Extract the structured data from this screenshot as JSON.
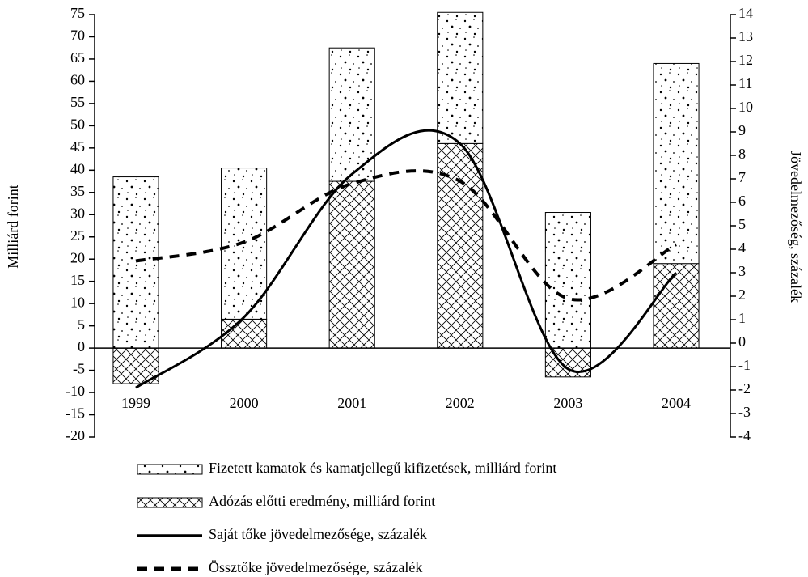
{
  "chart_data": {
    "type": "bar-line",
    "categories": [
      "1999",
      "2000",
      "2001",
      "2002",
      "2003",
      "2004"
    ],
    "ylabel": "Milliárd forint",
    "y2label": "Jövedelmezőség, százalék",
    "ylim": [
      -20,
      75
    ],
    "yticks": [
      -20,
      -15,
      -10,
      -5,
      0,
      5,
      10,
      15,
      20,
      25,
      30,
      35,
      40,
      45,
      50,
      55,
      60,
      65,
      70,
      75
    ],
    "y2lim": [
      -4,
      14
    ],
    "y2ticks": [
      -4,
      -3,
      -2,
      -1,
      0,
      1,
      2,
      3,
      4,
      5,
      6,
      7,
      8,
      9,
      10,
      11,
      12,
      13,
      14
    ],
    "series": [
      {
        "name": "Fizetett kamatok és kamatjellegű kifizetések, milliárd forint",
        "type": "bar",
        "pattern": "dots",
        "color": "#000000",
        "values": [
          38.5,
          34,
          30,
          29.5,
          30.5,
          45
        ]
      },
      {
        "name": "Adózás előtti eredmény, milliárd forint",
        "type": "bar",
        "pattern": "crosshatch",
        "color": "#000000",
        "values": [
          -8,
          6.5,
          37.5,
          46,
          -6.5,
          19
        ]
      },
      {
        "name": "Saját tőke jövedelmezősége, százalék",
        "type": "line",
        "axis": "y2",
        "style": "solid",
        "color": "#000000",
        "values": [
          -1.9,
          1.1,
          7.2,
          8.5,
          -1.1,
          3.0
        ]
      },
      {
        "name": "Össztőke jövedelmezősége, százalék",
        "type": "line",
        "axis": "y2",
        "style": "dashed",
        "color": "#000000",
        "values": [
          3.5,
          4.3,
          6.8,
          6.9,
          1.9,
          4.2
        ]
      }
    ]
  }
}
